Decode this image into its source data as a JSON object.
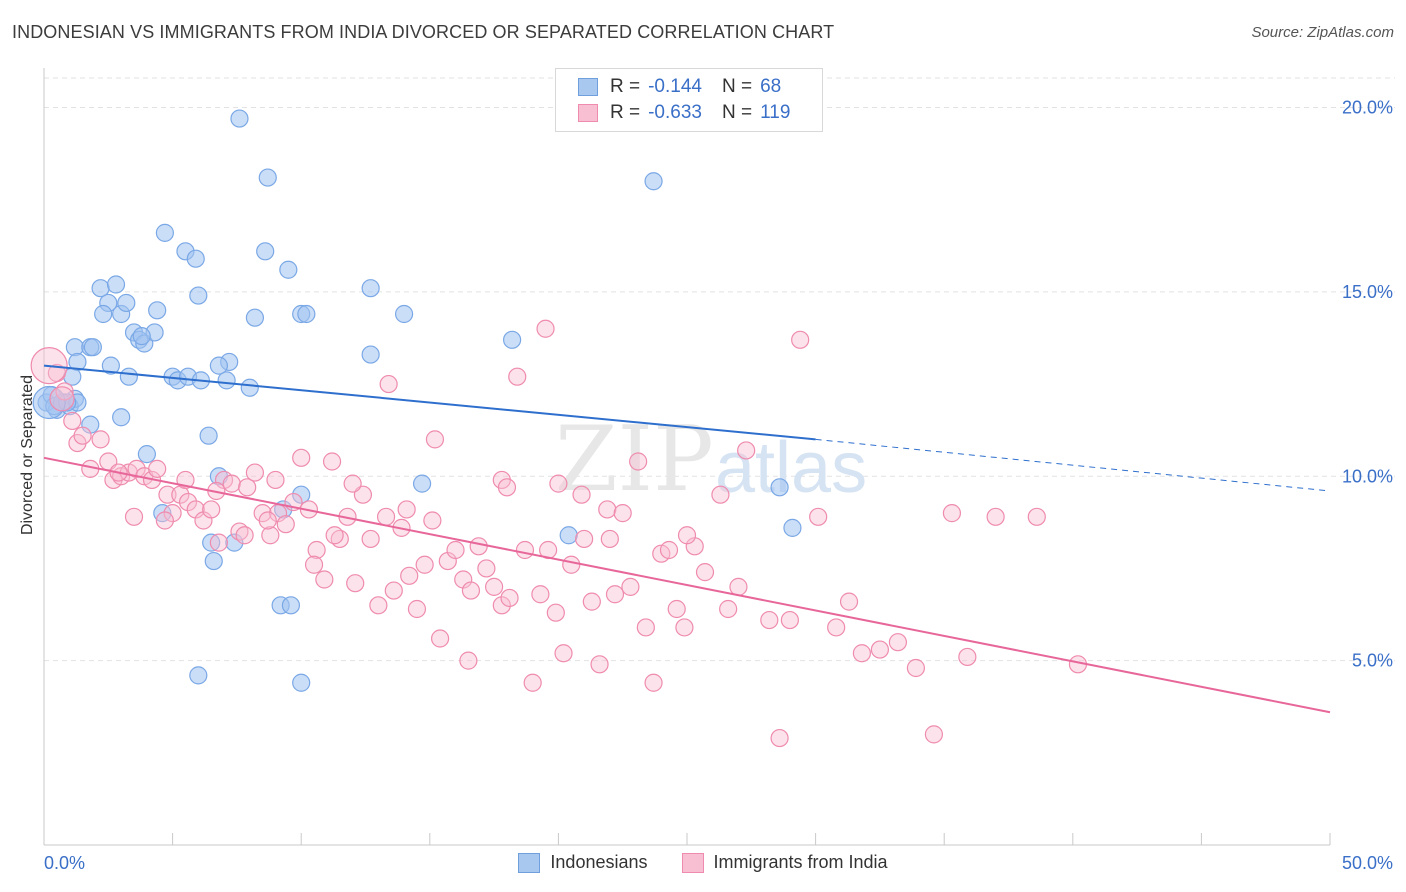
{
  "header": {
    "title": "INDONESIAN VS IMMIGRANTS FROM INDIA DIVORCED OR SEPARATED CORRELATION CHART",
    "source": "Source: ZipAtlas.com"
  },
  "legend": {
    "rows": [
      {
        "r_label": "R =",
        "r_value": "-0.144",
        "n_label": "N =",
        "n_value": "68",
        "color": "#a9c8f0",
        "border": "#6f9fdc"
      },
      {
        "r_label": "R =",
        "r_value": "-0.633",
        "n_label": "N =",
        "n_value": "119",
        "color": "#f8bfd2",
        "border": "#ef8bae"
      }
    ]
  },
  "bottom_legend": {
    "items": [
      {
        "label": "Indonesians",
        "color": "#a9c8f0",
        "border": "#6f9fdc"
      },
      {
        "label": "Immigrants from India",
        "color": "#f8bfd2",
        "border": "#ef8bae"
      }
    ]
  },
  "watermark": {
    "zip": "ZIP",
    "atlas": "atlas"
  },
  "chart_data": {
    "type": "scatter",
    "ylabel": "Divorced or Separated",
    "x_tick_labels": {
      "min": "0.0%",
      "max": "50.0%"
    },
    "y_tick_labels": [
      "5.0%",
      "10.0%",
      "15.0%",
      "20.0%"
    ],
    "y_ticks": [
      5,
      10,
      15,
      20
    ],
    "xlim": [
      0,
      50
    ],
    "ylim": [
      0,
      20.8
    ],
    "grid": true,
    "series": [
      {
        "name": "Indonesians",
        "color": "#7aa8e6",
        "fill": "rgba(160,195,240,0.55)",
        "trend": {
          "x1": 0,
          "y1": 13.0,
          "x2": 30,
          "y2": 11.0,
          "dash_x2": 50,
          "dash_y2": 9.6,
          "color": "#2e6fce"
        },
        "points": [
          [
            0.1,
            12.0
          ],
          [
            0.3,
            12.2
          ],
          [
            0.5,
            11.8
          ],
          [
            0.8,
            12.0
          ],
          [
            1.0,
            11.9
          ],
          [
            1.2,
            12.1
          ],
          [
            0.4,
            11.9
          ],
          [
            0.7,
            12.0
          ],
          [
            1.2,
            13.5
          ],
          [
            1.3,
            13.1
          ],
          [
            1.1,
            12.7
          ],
          [
            1.8,
            13.5
          ],
          [
            1.9,
            13.5
          ],
          [
            1.8,
            11.4
          ],
          [
            1.3,
            12.0
          ],
          [
            0.9,
            12.0
          ],
          [
            2.2,
            15.1
          ],
          [
            2.8,
            15.2
          ],
          [
            2.5,
            14.7
          ],
          [
            2.3,
            14.4
          ],
          [
            3.0,
            14.4
          ],
          [
            3.2,
            14.7
          ],
          [
            3.5,
            13.9
          ],
          [
            3.7,
            13.7
          ],
          [
            3.9,
            13.6
          ],
          [
            4.3,
            13.9
          ],
          [
            4.4,
            14.5
          ],
          [
            4.7,
            16.6
          ],
          [
            5.0,
            12.7
          ],
          [
            5.2,
            12.6
          ],
          [
            5.6,
            12.7
          ],
          [
            6.1,
            12.6
          ],
          [
            3.8,
            13.8
          ],
          [
            2.6,
            13.0
          ],
          [
            3.3,
            12.7
          ],
          [
            3.0,
            11.6
          ],
          [
            4.0,
            10.6
          ],
          [
            6.4,
            11.1
          ],
          [
            6.8,
            10.0
          ],
          [
            7.1,
            12.6
          ],
          [
            7.2,
            13.1
          ],
          [
            7.6,
            19.7
          ],
          [
            8.2,
            14.3
          ],
          [
            8.6,
            16.1
          ],
          [
            8.7,
            18.1
          ],
          [
            9.5,
            15.6
          ],
          [
            10.0,
            14.4
          ],
          [
            10.2,
            14.4
          ],
          [
            6.8,
            13.0
          ],
          [
            5.5,
            16.1
          ],
          [
            5.9,
            15.9
          ],
          [
            6.0,
            14.9
          ],
          [
            4.6,
            9.0
          ],
          [
            6.5,
            8.2
          ],
          [
            7.4,
            8.2
          ],
          [
            6.6,
            7.7
          ],
          [
            9.2,
            6.5
          ],
          [
            9.6,
            6.5
          ],
          [
            10.0,
            9.5
          ],
          [
            9.3,
            9.1
          ],
          [
            6.0,
            4.6
          ],
          [
            10.0,
            4.4
          ],
          [
            12.7,
            13.3
          ],
          [
            12.7,
            15.1
          ],
          [
            14.0,
            14.4
          ],
          [
            14.7,
            9.8
          ],
          [
            18.2,
            13.7
          ],
          [
            20.4,
            8.4
          ],
          [
            23.7,
            18.0
          ],
          [
            28.6,
            9.7
          ],
          [
            29.1,
            8.6
          ],
          [
            8.0,
            12.4
          ]
        ],
        "big": [
          [
            0.2,
            12.0,
            16
          ]
        ]
      },
      {
        "name": "Immigrants from India",
        "color": "#ef8bae",
        "fill": "rgba(248,190,210,0.45)",
        "trend": {
          "x1": 0,
          "y1": 10.5,
          "x2": 50,
          "y2": 3.6,
          "color": "#e8679a"
        },
        "points": [
          [
            0.5,
            12.8
          ],
          [
            0.8,
            12.3
          ],
          [
            1.1,
            11.5
          ],
          [
            1.3,
            10.9
          ],
          [
            1.5,
            11.1
          ],
          [
            1.8,
            10.2
          ],
          [
            2.2,
            11.0
          ],
          [
            2.5,
            10.4
          ],
          [
            2.7,
            9.9
          ],
          [
            3.0,
            10.0
          ],
          [
            3.3,
            10.1
          ],
          [
            3.6,
            10.2
          ],
          [
            3.9,
            10.0
          ],
          [
            4.2,
            9.9
          ],
          [
            4.4,
            10.2
          ],
          [
            4.8,
            9.5
          ],
          [
            5.0,
            9.0
          ],
          [
            5.3,
            9.5
          ],
          [
            5.6,
            9.3
          ],
          [
            5.9,
            9.1
          ],
          [
            6.2,
            8.8
          ],
          [
            6.5,
            9.1
          ],
          [
            6.8,
            8.2
          ],
          [
            7.0,
            9.9
          ],
          [
            7.3,
            9.8
          ],
          [
            7.6,
            8.5
          ],
          [
            7.9,
            9.7
          ],
          [
            8.2,
            10.1
          ],
          [
            8.5,
            9.0
          ],
          [
            8.8,
            8.4
          ],
          [
            9.1,
            9.0
          ],
          [
            9.4,
            8.7
          ],
          [
            9.7,
            9.3
          ],
          [
            10.0,
            10.5
          ],
          [
            10.3,
            9.1
          ],
          [
            10.6,
            8.0
          ],
          [
            10.9,
            7.2
          ],
          [
            11.2,
            10.4
          ],
          [
            11.5,
            8.3
          ],
          [
            11.8,
            8.9
          ],
          [
            12.1,
            7.1
          ],
          [
            12.4,
            9.5
          ],
          [
            12.7,
            8.3
          ],
          [
            13.0,
            6.5
          ],
          [
            13.3,
            8.9
          ],
          [
            13.6,
            6.9
          ],
          [
            13.9,
            8.6
          ],
          [
            14.2,
            7.3
          ],
          [
            14.5,
            6.4
          ],
          [
            14.8,
            7.6
          ],
          [
            15.1,
            8.8
          ],
          [
            15.4,
            5.6
          ],
          [
            15.7,
            7.7
          ],
          [
            16.0,
            8.0
          ],
          [
            16.3,
            7.2
          ],
          [
            16.6,
            6.9
          ],
          [
            16.9,
            8.1
          ],
          [
            17.2,
            7.5
          ],
          [
            17.5,
            7.0
          ],
          [
            17.8,
            6.5
          ],
          [
            18.1,
            6.7
          ],
          [
            18.4,
            12.7
          ],
          [
            18.7,
            8.0
          ],
          [
            19.0,
            4.4
          ],
          [
            19.3,
            6.8
          ],
          [
            19.6,
            8.0
          ],
          [
            19.9,
            6.3
          ],
          [
            20.2,
            5.2
          ],
          [
            20.5,
            7.6
          ],
          [
            20.9,
            9.5
          ],
          [
            21.3,
            6.6
          ],
          [
            21.6,
            4.9
          ],
          [
            21.9,
            9.1
          ],
          [
            22.2,
            6.8
          ],
          [
            22.5,
            9.0
          ],
          [
            22.8,
            7.0
          ],
          [
            23.1,
            10.4
          ],
          [
            23.4,
            5.9
          ],
          [
            23.7,
            4.4
          ],
          [
            24.0,
            7.9
          ],
          [
            24.3,
            8.0
          ],
          [
            24.6,
            6.4
          ],
          [
            24.9,
            5.9
          ],
          [
            25.3,
            8.1
          ],
          [
            25.7,
            7.4
          ],
          [
            26.3,
            9.5
          ],
          [
            27.3,
            10.7
          ],
          [
            28.2,
            6.1
          ],
          [
            28.6,
            2.9
          ],
          [
            29.0,
            6.1
          ],
          [
            29.4,
            13.7
          ],
          [
            30.1,
            8.9
          ],
          [
            30.8,
            5.9
          ],
          [
            31.3,
            6.6
          ],
          [
            31.8,
            5.2
          ],
          [
            32.5,
            5.3
          ],
          [
            33.2,
            5.5
          ],
          [
            33.9,
            4.8
          ],
          [
            34.6,
            3.0
          ],
          [
            35.3,
            9.0
          ],
          [
            35.9,
            5.1
          ],
          [
            37.0,
            8.9
          ],
          [
            38.6,
            8.9
          ],
          [
            40.2,
            4.9
          ],
          [
            16.5,
            5.0
          ],
          [
            19.5,
            14.0
          ],
          [
            13.4,
            12.5
          ],
          [
            15.2,
            11.0
          ],
          [
            17.8,
            9.9
          ],
          [
            21.0,
            8.3
          ],
          [
            27.0,
            7.0
          ],
          [
            3.5,
            8.9
          ],
          [
            5.5,
            9.9
          ],
          [
            8.7,
            8.8
          ],
          [
            12.0,
            9.8
          ],
          [
            14.1,
            9.1
          ],
          [
            18.0,
            9.7
          ],
          [
            20.0,
            9.8
          ],
          [
            22.0,
            8.3
          ],
          [
            10.5,
            7.6
          ],
          [
            11.3,
            8.4
          ],
          [
            9.0,
            9.9
          ],
          [
            7.8,
            8.4
          ],
          [
            6.7,
            9.6
          ],
          [
            4.7,
            8.8
          ],
          [
            2.9,
            10.1
          ],
          [
            25.0,
            8.4
          ],
          [
            26.6,
            6.4
          ]
        ],
        "big": [
          [
            0.2,
            13.0,
            18
          ],
          [
            0.7,
            12.1,
            12
          ]
        ]
      }
    ]
  }
}
